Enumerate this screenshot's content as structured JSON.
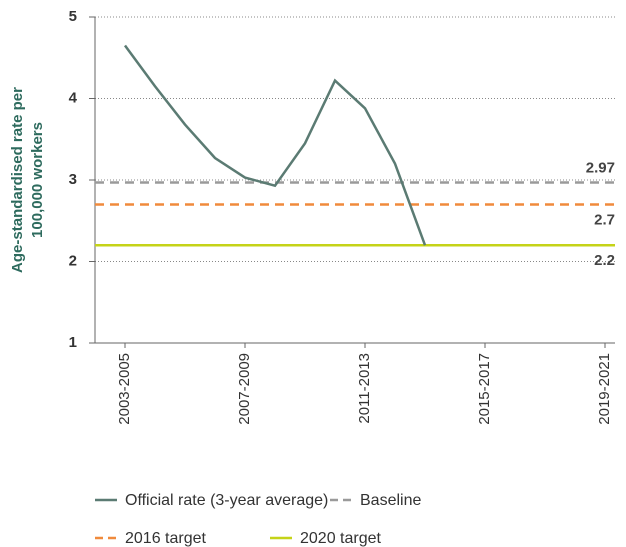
{
  "chart_data": {
    "type": "line",
    "ylabel_lines": [
      "Age-standardised rate per",
      "100,000 workers"
    ],
    "categories": [
      "2003-2005",
      null,
      null,
      null,
      "2007-2009",
      null,
      null,
      null,
      "2011-2013",
      null,
      null,
      null,
      "2015-2017",
      null,
      null,
      null,
      "2019-2021"
    ],
    "series": [
      {
        "name": "Official rate (3-year average)",
        "color": "#5b7b73",
        "values": [
          4.65,
          4.15,
          3.68,
          3.27,
          3.03,
          2.93,
          3.45,
          4.22,
          3.88,
          3.2,
          2.2,
          null,
          null,
          null,
          null,
          null,
          null
        ]
      }
    ],
    "reference_lines": [
      {
        "name": "Baseline",
        "color": "#9a9a9a",
        "dashed": true,
        "value": 2.97,
        "label_side": "above"
      },
      {
        "name": "2016 target",
        "color": "#f08a3c",
        "dashed": true,
        "value": 2.7,
        "label_side": "below"
      },
      {
        "name": "2020 target",
        "color": "#c5d318",
        "dashed": false,
        "value": 2.2,
        "label_side": "below"
      }
    ],
    "ylim": [
      1,
      5
    ],
    "yticks": [
      1,
      2,
      3,
      4,
      5
    ],
    "grid": true
  }
}
